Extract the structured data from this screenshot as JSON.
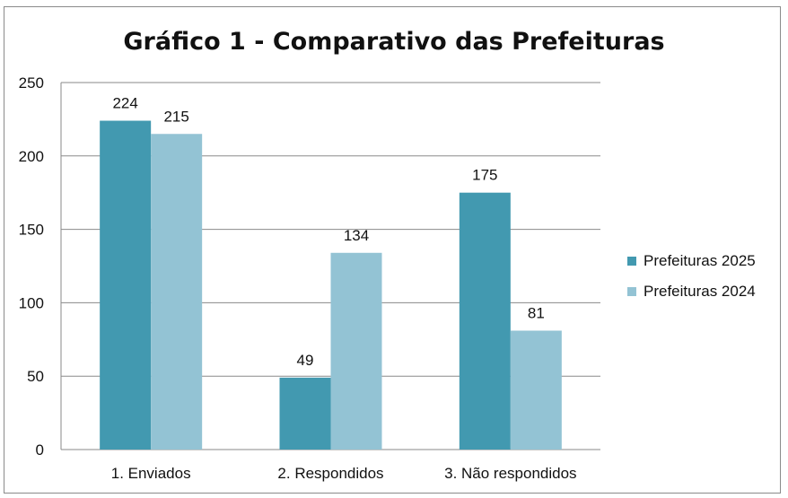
{
  "chart_data": {
    "type": "bar",
    "title": "Gráfico 1 - Comparativo das Prefeituras",
    "xlabel": "",
    "ylabel": "",
    "categories": [
      "1. Enviados",
      "2. Respondidos",
      "3. Não respondidos"
    ],
    "series": [
      {
        "name": "Prefeituras 2025",
        "values": [
          224,
          49,
          175
        ],
        "color": "#4299b0"
      },
      {
        "name": "Prefeituras 2024",
        "values": [
          215,
          134,
          81
        ],
        "color": "#93c3d4"
      }
    ],
    "ylim": [
      0,
      250
    ],
    "yticks": [
      0,
      50,
      100,
      150,
      200,
      250
    ],
    "grid": true,
    "legend_position": "right",
    "data_labels": true
  }
}
